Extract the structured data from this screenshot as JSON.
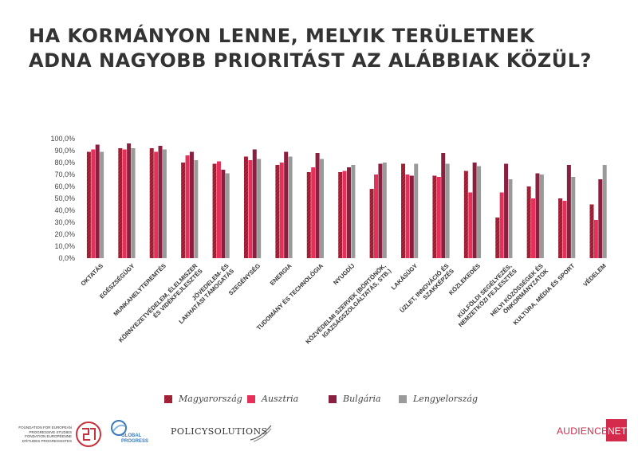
{
  "title": {
    "line1": "HA KORMÁNYON LENNE, MELYIK TERÜLETNEK",
    "line2": "ADNA NAGYOBB PRIORITÁST AZ ALÁBBIAK KÖZÜL?"
  },
  "colors": {
    "Magyarország": "#b2243b",
    "Ausztria": "#e5305a",
    "Bulgária": "#8a2040",
    "Lengyelország": "#9a9a9a"
  },
  "chart_data": {
    "type": "bar",
    "title": "HA KORMÁNYON LENNE, MELYIK TERÜLETNEK ADNA NAGYOBB PRIORITÁST AZ ALÁBBIAK KÖZÜL?",
    "xlabel": "",
    "ylabel": "",
    "ylim": [
      0,
      100
    ],
    "yticks": [
      "0,0%",
      "10,0%",
      "20,0%",
      "30,0%",
      "40,0%",
      "50,0%",
      "60,0%",
      "70,0%",
      "80,0%",
      "90,0%",
      "100,0%"
    ],
    "grid": false,
    "legend_position": "bottom",
    "categories": [
      "OKTATÁS",
      "EGÉSZSÉGÜGY",
      "MUNKAHELYTEREMTÉS",
      "KÖRNYEZETVÉDELEM, ÉLELMISZER ÉS VIDÉKFEJLESZTÉS",
      "JÖVEDELEM- ÉS LAKHATÁSI TÁMOGATÁS",
      "SZEGÉNYSÉG",
      "ENERGIA",
      "TUDOMÁNY ÉS TECHNOLÓGIA",
      "NYUGDÍJ",
      "KÖZVÉDELMI SZERVEK (BÖRTÖNÖK, IGAZSÁGSZOLGÁLTATÁS, STB.)",
      "LAKÁSÜGY",
      "ÜZLET, INNOVÁCIÓ ÉS SZAKKÉPZÉS",
      "KÖZLEKEDÉS",
      "KÜLFÖLDI SEGÉLYEZÉS, NEMZETKÖZI FEJLESZTÉS",
      "HELYI KÖZÖSSÉGEK ÉS ÖNKORMÁNYZATOK",
      "KULTÚRA, MÉDIA ÉS SPORT",
      "VÉDELEM"
    ],
    "series": [
      {
        "name": "Magyarország",
        "pattern": "hatched",
        "values": [
          89,
          92,
          92,
          80,
          79,
          85,
          78,
          72,
          72,
          58,
          79,
          69,
          73,
          34,
          60,
          50,
          45
        ]
      },
      {
        "name": "Ausztria",
        "values": [
          91,
          91,
          89,
          86,
          81,
          82,
          80,
          76,
          73,
          70,
          70,
          68,
          55,
          55,
          50,
          48,
          32
        ]
      },
      {
        "name": "Bulgária",
        "values": [
          95,
          96,
          94,
          89,
          74,
          91,
          89,
          88,
          76,
          79,
          69,
          88,
          80,
          79,
          71,
          78,
          66
        ]
      },
      {
        "name": "Lengyelország",
        "values": [
          89,
          92,
          91,
          82,
          71,
          83,
          85,
          83,
          78,
          80,
          79,
          79,
          77,
          66,
          70,
          68,
          78
        ]
      }
    ]
  },
  "legend": [
    {
      "label": "Magyarország"
    },
    {
      "label": "Ausztria"
    },
    {
      "label": "Bulgária"
    },
    {
      "label": "Lengyelország"
    }
  ],
  "footer": {
    "feps_text": "FOUNDATION FOR EUROPEAN PROGRESSIVE STUDIES FONDATION EUROPÉENNE D'ÉTUDES PROGRESSISTES",
    "global_progress": "GLOBAL PROGRESS",
    "policy_solutions": "POLICYSOLUTIONS",
    "audience_net_a": "AUDIENCE",
    "audience_net_b": "NET"
  }
}
